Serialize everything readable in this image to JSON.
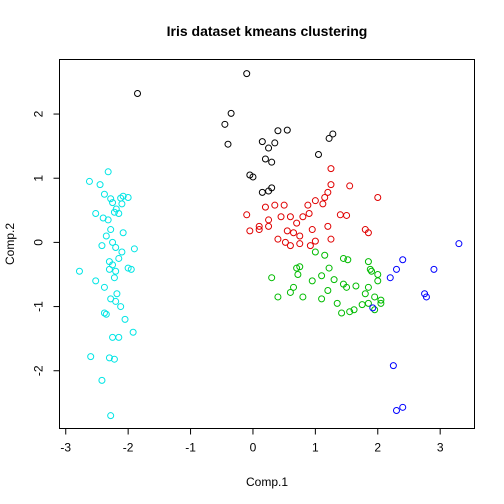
{
  "chart_data": {
    "type": "scatter",
    "title": "Iris dataset kmeans clustering",
    "xlabel": "Comp.1",
    "ylabel": "Comp.2",
    "xlim": [
      -3.1,
      3.55
    ],
    "ylim": [
      -2.9,
      2.85
    ],
    "xticks": [
      -3,
      -2,
      -1,
      0,
      1,
      2,
      3
    ],
    "yticks": [
      -2,
      -1,
      0,
      1,
      2
    ],
    "grid": false,
    "colors": {
      "cluster1": "#00e5e5",
      "cluster2": "#000000",
      "cluster3": "#e00000",
      "cluster4": "#00bb00",
      "cluster5": "#0000ff"
    },
    "series": [
      {
        "color": "#00e5e5",
        "points": [
          [
            -2.32,
            1.1
          ],
          [
            -2.62,
            0.95
          ],
          [
            -2.45,
            0.9
          ],
          [
            -2.38,
            0.75
          ],
          [
            -2.28,
            0.68
          ],
          [
            -2.25,
            0.62
          ],
          [
            -2.08,
            0.72
          ],
          [
            -2.12,
            0.69
          ],
          [
            -2.0,
            0.7
          ],
          [
            -2.1,
            0.6
          ],
          [
            -2.52,
            0.45
          ],
          [
            -2.19,
            0.52
          ],
          [
            -2.22,
            0.47
          ],
          [
            -2.15,
            0.45
          ],
          [
            -2.4,
            0.38
          ],
          [
            -2.32,
            0.35
          ],
          [
            -2.28,
            0.2
          ],
          [
            -2.08,
            0.15
          ],
          [
            -2.35,
            0.1
          ],
          [
            -2.25,
            0.0
          ],
          [
            -2.42,
            -0.05
          ],
          [
            -2.2,
            -0.08
          ],
          [
            -1.9,
            -0.1
          ],
          [
            -2.1,
            -0.15
          ],
          [
            -2.15,
            -0.25
          ],
          [
            -2.3,
            -0.3
          ],
          [
            -2.25,
            -0.35
          ],
          [
            -2.78,
            -0.45
          ],
          [
            -2.3,
            -0.42
          ],
          [
            -2.2,
            -0.45
          ],
          [
            -2.0,
            -0.4
          ],
          [
            -1.95,
            -0.42
          ],
          [
            -2.22,
            -0.55
          ],
          [
            -2.52,
            -0.6
          ],
          [
            -2.38,
            -0.7
          ],
          [
            -2.18,
            -0.8
          ],
          [
            -2.28,
            -0.88
          ],
          [
            -2.2,
            -0.92
          ],
          [
            -2.12,
            -1.0
          ],
          [
            -2.38,
            -1.1
          ],
          [
            -2.35,
            -1.12
          ],
          [
            -2.05,
            -1.2
          ],
          [
            -1.92,
            -1.4
          ],
          [
            -2.25,
            -1.48
          ],
          [
            -2.15,
            -1.48
          ],
          [
            -2.6,
            -1.78
          ],
          [
            -2.3,
            -1.8
          ],
          [
            -2.22,
            -1.82
          ],
          [
            -2.42,
            -2.15
          ],
          [
            -2.28,
            -2.7
          ]
        ]
      },
      {
        "color": "#000000",
        "points": [
          [
            -0.1,
            2.63
          ],
          [
            -1.85,
            2.32
          ],
          [
            -0.35,
            2.01
          ],
          [
            -0.45,
            1.84
          ],
          [
            0.55,
            1.75
          ],
          [
            0.4,
            1.74
          ],
          [
            1.28,
            1.69
          ],
          [
            1.22,
            1.62
          ],
          [
            -0.4,
            1.53
          ],
          [
            0.15,
            1.57
          ],
          [
            0.35,
            1.55
          ],
          [
            0.25,
            1.47
          ],
          [
            0.2,
            1.3
          ],
          [
            1.05,
            1.37
          ],
          [
            0.3,
            1.25
          ],
          [
            -0.05,
            1.05
          ],
          [
            0.0,
            1.02
          ],
          [
            0.3,
            0.85
          ],
          [
            0.25,
            0.8
          ],
          [
            0.15,
            0.78
          ]
        ]
      },
      {
        "color": "#e00000",
        "points": [
          [
            1.25,
            1.15
          ],
          [
            1.25,
            0.9
          ],
          [
            1.55,
            0.88
          ],
          [
            1.2,
            0.78
          ],
          [
            1.15,
            0.7
          ],
          [
            1.12,
            0.6
          ],
          [
            1.0,
            0.65
          ],
          [
            0.88,
            0.58
          ],
          [
            2.0,
            0.7
          ],
          [
            0.9,
            0.45
          ],
          [
            0.8,
            0.4
          ],
          [
            1.4,
            0.43
          ],
          [
            1.5,
            0.42
          ],
          [
            1.2,
            0.25
          ],
          [
            0.95,
            0.2
          ],
          [
            0.2,
            0.55
          ],
          [
            0.35,
            0.58
          ],
          [
            0.5,
            0.58
          ],
          [
            -0.1,
            0.43
          ],
          [
            0.25,
            0.35
          ],
          [
            0.45,
            0.4
          ],
          [
            0.6,
            0.4
          ],
          [
            0.7,
            0.3
          ],
          [
            0.1,
            0.2
          ],
          [
            0.25,
            0.25
          ],
          [
            0.55,
            0.18
          ],
          [
            0.65,
            0.15
          ],
          [
            0.4,
            0.05
          ],
          [
            0.6,
            -0.05
          ],
          [
            0.75,
            -0.02
          ],
          [
            1.0,
            0.02
          ],
          [
            1.25,
            0.05
          ],
          [
            0.92,
            -0.05
          ],
          [
            1.8,
            0.2
          ],
          [
            1.85,
            0.15
          ],
          [
            0.75,
            0.1
          ],
          [
            0.1,
            0.25
          ],
          [
            -0.05,
            0.18
          ],
          [
            0.52,
            0.0
          ]
        ]
      },
      {
        "color": "#00bb00",
        "points": [
          [
            1.0,
            -0.15
          ],
          [
            1.15,
            -0.2
          ],
          [
            1.45,
            -0.25
          ],
          [
            1.52,
            -0.27
          ],
          [
            1.85,
            -0.3
          ],
          [
            0.75,
            -0.38
          ],
          [
            1.22,
            -0.4
          ],
          [
            1.88,
            -0.42
          ],
          [
            1.9,
            -0.45
          ],
          [
            2.0,
            -0.5
          ],
          [
            1.1,
            -0.52
          ],
          [
            0.95,
            -0.6
          ],
          [
            0.72,
            -0.5
          ],
          [
            0.3,
            -0.55
          ],
          [
            1.3,
            -0.58
          ],
          [
            1.45,
            -0.65
          ],
          [
            1.5,
            -0.7
          ],
          [
            2.0,
            -0.6
          ],
          [
            1.85,
            -0.7
          ],
          [
            0.65,
            -0.7
          ],
          [
            1.65,
            -0.68
          ],
          [
            1.8,
            -0.8
          ],
          [
            0.4,
            -0.85
          ],
          [
            0.8,
            -0.85
          ],
          [
            1.1,
            -0.88
          ],
          [
            1.95,
            -0.85
          ],
          [
            2.05,
            -0.9
          ],
          [
            2.05,
            -0.95
          ],
          [
            1.85,
            -0.95
          ],
          [
            1.75,
            -0.97
          ],
          [
            1.35,
            -0.95
          ],
          [
            1.62,
            -1.05
          ],
          [
            1.55,
            -1.08
          ],
          [
            1.42,
            -1.1
          ],
          [
            0.7,
            -0.4
          ],
          [
            0.6,
            -0.78
          ],
          [
            1.2,
            -0.75
          ],
          [
            1.95,
            -1.05
          ]
        ]
      },
      {
        "color": "#0000ff",
        "points": [
          [
            3.3,
            -0.02
          ],
          [
            2.4,
            -0.27
          ],
          [
            2.3,
            -0.42
          ],
          [
            2.9,
            -0.42
          ],
          [
            2.2,
            -0.55
          ],
          [
            2.75,
            -0.8
          ],
          [
            2.78,
            -0.85
          ],
          [
            1.92,
            -1.02
          ],
          [
            2.25,
            -1.92
          ],
          [
            2.4,
            -2.57
          ],
          [
            2.3,
            -2.62
          ]
        ]
      }
    ]
  }
}
